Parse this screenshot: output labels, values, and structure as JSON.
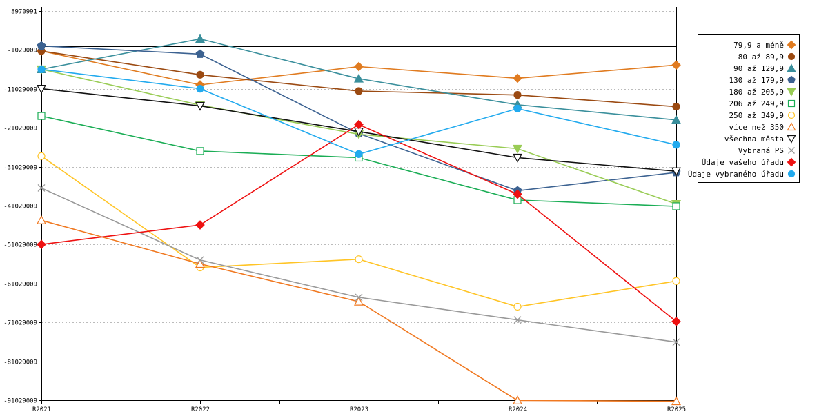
{
  "chart_data": {
    "type": "line",
    "title": "",
    "xlabel": "",
    "ylabel": "",
    "categories": [
      "R2021",
      "R2022",
      "R2023",
      "R2024",
      "R2025"
    ],
    "ylim": [
      -91029009,
      8970991
    ],
    "yticks": [
      8970991,
      -1029009,
      -11029009,
      -21029009,
      -31029009,
      -41029009,
      -51029009,
      -61029009,
      -71029009,
      -81029009,
      -91029009
    ],
    "ytick_labels": [
      "8970991",
      "-1029009",
      "-11029009",
      "-21029009",
      "-31029009",
      "-41029009",
      "-51029009",
      "-61029009",
      "-71029009",
      "-81029009",
      "-91029009"
    ],
    "reference_line": 0,
    "legend_position": "right",
    "series": [
      {
        "name": "79,9 a méně",
        "color": "#e07b20",
        "marker": "diamond",
        "filled": true,
        "values": [
          -1300000,
          -10000000,
          -5300000,
          -8300000,
          -4900000
        ]
      },
      {
        "name": "80 až 89,9",
        "color": "#9b4a12",
        "marker": "circle",
        "filled": true,
        "values": [
          -1300000,
          -7400000,
          -11600000,
          -12600000,
          -15600000
        ]
      },
      {
        "name": "90 až 129,9",
        "color": "#3a8f9c",
        "marker": "triangle-up",
        "filled": true,
        "values": [
          -6000000,
          1800000,
          -8400000,
          -15100000,
          -19000000
        ]
      },
      {
        "name": "130 až 179,9",
        "color": "#3c6291",
        "marker": "pentagon",
        "filled": true,
        "values": [
          0,
          -2100000,
          -22500000,
          -37200000,
          -32500000
        ]
      },
      {
        "name": "180 až 205,9",
        "color": "#99cc55",
        "marker": "triangle-down",
        "filled": true,
        "values": [
          -6000000,
          -15200000,
          -22700000,
          -26400000,
          -40600000
        ]
      },
      {
        "name": "206 až 249,9",
        "color": "#1aad55",
        "marker": "square",
        "filled": false,
        "values": [
          -18000000,
          -27000000,
          -28700000,
          -39600000,
          -41200000
        ]
      },
      {
        "name": "250 až 349,9",
        "color": "#ffc425",
        "marker": "circle",
        "filled": false,
        "values": [
          -28300000,
          -56900000,
          -54800000,
          -67000000,
          -60400000
        ]
      },
      {
        "name": "více než 350",
        "color": "#f07820",
        "marker": "triangle-up",
        "filled": false,
        "values": [
          -44800000,
          -56000000,
          -65700000,
          -91100000,
          -91300000
        ]
      },
      {
        "name": "všechna města",
        "color": "#111111",
        "marker": "triangle-down",
        "filled": false,
        "values": [
          -11000000,
          -15400000,
          -22000000,
          -28700000,
          -32200000
        ]
      },
      {
        "name": "Vybraná PS",
        "color": "#999999",
        "marker": "x",
        "filled": false,
        "values": [
          -36500000,
          -55000000,
          -64600000,
          -70400000,
          -76100000
        ]
      },
      {
        "name": "Údaje vašeho úřadu",
        "color": "#ee1111",
        "marker": "diamond",
        "filled": true,
        "values": [
          -51000000,
          -46000000,
          -20200000,
          -38100000,
          -70800000
        ]
      },
      {
        "name": "Údaje vybraného úřadu",
        "color": "#22aaee",
        "marker": "circle",
        "filled": true,
        "values": [
          -6000000,
          -11000000,
          -27800000,
          -16100000,
          -25400000
        ]
      }
    ]
  }
}
